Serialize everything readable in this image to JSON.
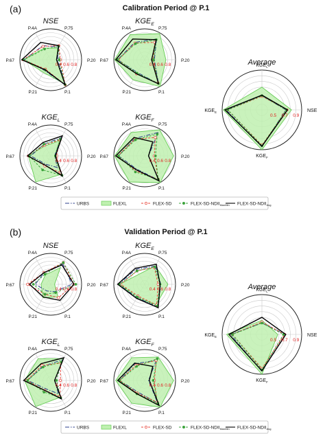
{
  "panels": [
    {
      "label": "(a)",
      "heading": "Calibration Period @ P.1"
    },
    {
      "label": "(b)",
      "heading": "Validation Period @ P.1"
    }
  ],
  "styles": {
    "URBS": {
      "color": "#2b3f8c",
      "dash": "6,2,1.5,2",
      "marker": "none",
      "fill": "none"
    },
    "FLEXL": {
      "color": "#66cc55",
      "dash": "",
      "marker": "none",
      "fill": "#bff0b0"
    },
    "FLEX-SD": {
      "color": "#e8443a",
      "dash": "3,2",
      "marker": "circle-open",
      "fill": "none"
    },
    "FLEX-SD-NDII_MaxMin": {
      "color": "#3aa33a",
      "dash": "3,2",
      "marker": "dot",
      "fill": "none"
    },
    "FLEX-SD-NDII_Avg": {
      "color": "#000000",
      "dash": "",
      "marker": "none",
      "fill": "none"
    }
  },
  "legend": {
    "items": [
      {
        "key": "URBS",
        "text": "URBS",
        "sub": ""
      },
      {
        "key": "FLEXL",
        "text": "FLEXL",
        "sub": ""
      },
      {
        "key": "FLEX-SD",
        "text": "FLEX-SD",
        "sub": ""
      },
      {
        "key": "FLEX-SD-NDII_MaxMin",
        "text": "FLEX-SD-NDII",
        "sub": "MaxMin"
      },
      {
        "key": "FLEX-SD-NDII_Avg",
        "text": "FLEX-SD-NDII",
        "sub": "Avg"
      }
    ]
  },
  "chart_data": [
    {
      "type": "radar",
      "panel": "(a)",
      "title": "NSE",
      "title_sub": "",
      "axes": [
        "P.75",
        "P.20",
        "P.1",
        "P.21",
        "P.67",
        "P.4A"
      ],
      "rlim": [
        0.2,
        1.0
      ],
      "rticks": [
        "0.4",
        "0.6",
        "0.8"
      ],
      "series": [
        {
          "name": "URBS",
          "values": [
            0.58,
            0.38,
            0.96,
            0.52,
            0.88,
            0.62
          ]
        },
        {
          "name": "FLEXL",
          "values": [
            0.55,
            0.36,
            0.92,
            0.58,
            0.9,
            0.55
          ]
        },
        {
          "name": "FLEX-SD",
          "values": [
            0.62,
            0.45,
            0.95,
            0.48,
            0.92,
            0.6
          ]
        },
        {
          "name": "FLEX-SD-NDII_MaxMin",
          "values": [
            0.6,
            0.42,
            0.94,
            0.5,
            0.9,
            0.52
          ]
        },
        {
          "name": "FLEX-SD-NDII_Avg",
          "values": [
            0.62,
            0.35,
            0.95,
            0.5,
            0.95,
            0.72
          ]
        }
      ]
    },
    {
      "type": "radar",
      "panel": "(a)",
      "title": "KGE",
      "title_sub": "E",
      "axes": [
        "P.75",
        "P.20",
        "P.1",
        "P.21",
        "P.67",
        "P.4A"
      ],
      "rlim": [
        0.2,
        1.0
      ],
      "rticks": [
        "0.4",
        "0.6",
        "0.8"
      ],
      "series": [
        {
          "name": "URBS",
          "values": [
            0.82,
            0.45,
            0.92,
            0.58,
            0.9,
            0.72
          ]
        },
        {
          "name": "FLEXL",
          "values": [
            0.98,
            0.75,
            1.0,
            0.8,
            0.98,
            0.95
          ]
        },
        {
          "name": "FLEX-SD",
          "values": [
            0.72,
            0.42,
            0.9,
            0.62,
            0.88,
            0.7
          ]
        },
        {
          "name": "FLEX-SD-NDII_MaxMin",
          "values": [
            0.8,
            0.43,
            0.91,
            0.6,
            0.9,
            0.68
          ]
        },
        {
          "name": "FLEX-SD-NDII_Avg",
          "values": [
            0.8,
            0.38,
            0.92,
            0.62,
            0.95,
            0.82
          ]
        }
      ]
    },
    {
      "type": "radar",
      "panel": "(a)",
      "title": "Average",
      "title_sub": "",
      "axes": [
        "KGE_L",
        "NSE",
        "KGE_F",
        "KGE_E"
      ],
      "axis_labels": [
        [
          "KGE",
          "L"
        ],
        [
          "NSE",
          ""
        ],
        [
          "KGE",
          "F"
        ],
        [
          "KGE",
          "E"
        ]
      ],
      "rlim": [
        0.3,
        1.0
      ],
      "rticks": [
        "0.5",
        "0.7",
        "0.9"
      ],
      "series": [
        {
          "name": "URBS",
          "values": [
            0.55,
            0.72,
            0.95,
            0.93
          ]
        },
        {
          "name": "FLEXL",
          "values": [
            0.7,
            0.82,
            1.0,
            0.98
          ]
        },
        {
          "name": "FLEX-SD",
          "values": [
            0.54,
            0.74,
            0.92,
            0.9
          ]
        },
        {
          "name": "FLEX-SD-NDII_MaxMin",
          "values": [
            0.55,
            0.73,
            0.93,
            0.9
          ]
        },
        {
          "name": "FLEX-SD-NDII_Avg",
          "values": [
            0.56,
            0.75,
            0.94,
            0.95
          ]
        }
      ]
    },
    {
      "type": "radar",
      "panel": "(a)",
      "title": "KGE",
      "title_sub": "L",
      "axes": [
        "P.75",
        "P.20",
        "P.1",
        "P.21",
        "P.67",
        "P.4A"
      ],
      "rlim": [
        0.2,
        1.0
      ],
      "rticks": [
        "0.4",
        "0.6",
        "0.8"
      ],
      "series": [
        {
          "name": "URBS",
          "values": [
            0.75,
            0.3,
            0.55,
            0.45,
            0.72,
            0.55
          ]
        },
        {
          "name": "FLEXL",
          "values": [
            0.65,
            0.3,
            0.75,
            0.98,
            0.78,
            0.5
          ]
        },
        {
          "name": "FLEX-SD",
          "values": [
            0.68,
            0.35,
            0.7,
            0.5,
            0.78,
            0.52
          ]
        },
        {
          "name": "FLEX-SD-NDII_MaxMin",
          "values": [
            0.7,
            0.32,
            0.78,
            0.62,
            0.76,
            0.55
          ]
        },
        {
          "name": "FLEX-SD-NDII_Avg",
          "values": [
            0.8,
            0.32,
            0.8,
            0.48,
            0.8,
            0.6
          ]
        }
      ]
    },
    {
      "type": "radar",
      "panel": "(a)",
      "title": "KGE",
      "title_sub": "F",
      "axes": [
        "P.75",
        "P.20",
        "P.1",
        "P.21",
        "P.67",
        "P.4A"
      ],
      "rlim": [
        0.2,
        1.0
      ],
      "rticks": [
        "0.4",
        "0.6",
        "0.8"
      ],
      "series": [
        {
          "name": "URBS",
          "values": [
            0.9,
            0.3,
            0.92,
            0.6,
            0.88,
            0.72
          ]
        },
        {
          "name": "FLEXL",
          "values": [
            0.98,
            0.95,
            1.0,
            0.98,
            0.98,
            0.9
          ]
        },
        {
          "name": "FLEX-SD",
          "values": [
            0.75,
            0.45,
            0.9,
            0.65,
            0.9,
            0.7
          ]
        },
        {
          "name": "FLEX-SD-NDII_MaxMin",
          "values": [
            0.85,
            0.48,
            0.9,
            0.68,
            0.88,
            0.68
          ]
        },
        {
          "name": "FLEX-SD-NDII_Avg",
          "values": [
            0.62,
            0.3,
            0.95,
            0.62,
            0.95,
            0.75
          ]
        }
      ]
    },
    {
      "type": "radar",
      "panel": "(b)",
      "title": "NSE",
      "title_sub": "",
      "axes": [
        "P.75",
        "P.20",
        "P.1",
        "P.21",
        "P.67",
        "P.4A"
      ],
      "rlim": [
        0.2,
        1.0
      ],
      "rticks": [
        "0.4",
        "0.6",
        "0.8"
      ],
      "series": [
        {
          "name": "URBS",
          "values": [
            0.82,
            0.75,
            0.42,
            0.4,
            0.6,
            0.55
          ]
        },
        {
          "name": "FLEXL",
          "values": [
            0.7,
            0.3,
            0.58,
            0.6,
            0.45,
            0.48
          ]
        },
        {
          "name": "FLEX-SD",
          "values": [
            0.85,
            0.8,
            0.6,
            0.5,
            0.8,
            0.55
          ]
        },
        {
          "name": "FLEX-SD-NDII_MaxMin",
          "values": [
            0.85,
            0.85,
            0.45,
            0.5,
            0.65,
            0.5
          ]
        },
        {
          "name": "FLEX-SD-NDII_Avg",
          "values": [
            0.78,
            0.8,
            0.68,
            0.58,
            0.75,
            0.55
          ]
        }
      ]
    },
    {
      "type": "radar",
      "panel": "(b)",
      "title": "KGE",
      "title_sub": "E",
      "axes": [
        "P.75",
        "P.20",
        "P.1",
        "P.21",
        "P.67",
        "P.4A"
      ],
      "rlim": [
        0.2,
        1.0
      ],
      "rticks": [
        "0.4",
        "0.6",
        "0.8"
      ],
      "series": [
        {
          "name": "URBS",
          "values": [
            0.75,
            0.62,
            0.88,
            0.6,
            0.88,
            0.65
          ]
        },
        {
          "name": "FLEXL",
          "values": [
            0.75,
            0.8,
            0.8,
            0.62,
            0.85,
            0.5
          ]
        },
        {
          "name": "FLEX-SD",
          "values": [
            0.7,
            0.55,
            0.82,
            0.55,
            0.82,
            0.6
          ]
        },
        {
          "name": "FLEX-SD-NDII_MaxMin",
          "values": [
            0.72,
            0.6,
            0.85,
            0.58,
            0.85,
            0.6
          ]
        },
        {
          "name": "FLEX-SD-NDII_Avg",
          "values": [
            0.8,
            0.6,
            0.9,
            0.62,
            0.9,
            0.68
          ]
        }
      ]
    },
    {
      "type": "radar",
      "panel": "(b)",
      "title": "Average",
      "title_sub": "",
      "axes": [
        "KGE_L",
        "NSE",
        "KGE_F",
        "KGE_E"
      ],
      "axis_labels": [
        [
          "KGE",
          "L"
        ],
        [
          "NSE",
          ""
        ],
        [
          "KGE",
          "F"
        ],
        [
          "KGE",
          "E"
        ]
      ],
      "rlim": [
        0.3,
        1.0
      ],
      "rticks": [
        "0.5",
        "0.7",
        "0.9"
      ],
      "series": [
        {
          "name": "URBS",
          "values": [
            0.5,
            0.72,
            0.95,
            0.85
          ]
        },
        {
          "name": "FLEXL",
          "values": [
            0.55,
            0.58,
            1.0,
            0.92
          ]
        },
        {
          "name": "FLEX-SD",
          "values": [
            0.52,
            0.7,
            0.9,
            0.82
          ]
        },
        {
          "name": "FLEX-SD-NDII_MaxMin",
          "values": [
            0.5,
            0.68,
            0.92,
            0.82
          ]
        },
        {
          "name": "FLEX-SD-NDII_Avg",
          "values": [
            0.6,
            0.72,
            0.94,
            0.88
          ]
        }
      ]
    },
    {
      "type": "radar",
      "panel": "(b)",
      "title": "KGE",
      "title_sub": "L",
      "axes": [
        "P.75",
        "P.20",
        "P.1",
        "P.21",
        "P.67",
        "P.4A"
      ],
      "rlim": [
        0.2,
        1.0
      ],
      "rticks": [
        "0.4",
        "0.6",
        "0.8"
      ],
      "series": [
        {
          "name": "URBS",
          "values": [
            0.82,
            0.3,
            0.6,
            0.45,
            0.8,
            0.62
          ]
        },
        {
          "name": "FLEXL",
          "values": [
            0.85,
            0.3,
            0.7,
            0.98,
            0.88,
            0.85
          ]
        },
        {
          "name": "FLEX-SD",
          "values": [
            0.72,
            0.45,
            0.68,
            0.5,
            0.82,
            0.65
          ]
        },
        {
          "name": "FLEX-SD-NDII_MaxMin",
          "values": [
            0.75,
            0.35,
            0.72,
            0.55,
            0.8,
            0.6
          ]
        },
        {
          "name": "FLEX-SD-NDII_Avg",
          "values": [
            0.88,
            0.3,
            0.75,
            0.5,
            0.9,
            0.7
          ]
        }
      ]
    },
    {
      "type": "radar",
      "panel": "(b)",
      "title": "KGE",
      "title_sub": "F",
      "axes": [
        "P.75",
        "P.20",
        "P.1",
        "P.21",
        "P.67",
        "P.4A"
      ],
      "rlim": [
        0.2,
        1.0
      ],
      "rticks": [
        "0.4",
        "0.6",
        "0.8"
      ],
      "series": [
        {
          "name": "URBS",
          "values": [
            0.8,
            0.3,
            0.88,
            0.55,
            0.85,
            0.7
          ]
        },
        {
          "name": "FLEXL",
          "values": [
            0.9,
            0.95,
            1.0,
            0.88,
            0.95,
            0.88
          ]
        },
        {
          "name": "FLEX-SD",
          "values": [
            0.8,
            0.45,
            0.85,
            0.58,
            0.85,
            0.65
          ]
        },
        {
          "name": "FLEX-SD-NDII_MaxMin",
          "values": [
            0.85,
            0.42,
            0.88,
            0.6,
            0.85,
            0.62
          ]
        },
        {
          "name": "FLEX-SD-NDII_Avg",
          "values": [
            0.62,
            0.32,
            0.95,
            0.6,
            0.9,
            0.72
          ]
        }
      ]
    }
  ]
}
